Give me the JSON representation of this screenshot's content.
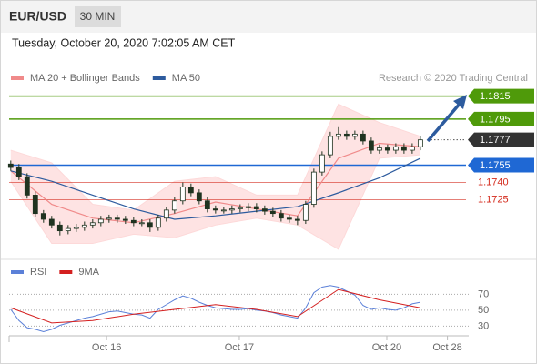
{
  "header": {
    "symbol": "EUR/USD",
    "interval": "30 MIN",
    "timestamp": "Tuesday, October 20, 2020 7:02:05 AM CET"
  },
  "chart_data": [
    {
      "type": "candlestick",
      "source": "Research © 2020 Trading Central",
      "open": [
        1.1756,
        1.1753,
        1.1745,
        1.1729,
        1.1713,
        1.1708,
        1.1703,
        1.1698,
        1.17,
        1.1701,
        1.1703,
        1.1705,
        1.1708,
        1.1709,
        1.1708,
        1.1707,
        1.1705,
        1.1705,
        1.1701,
        1.1709,
        1.1716,
        1.1724,
        1.1736,
        1.1731,
        1.1724,
        1.1717,
        1.1716,
        1.1716,
        1.1717,
        1.1718,
        1.1719,
        1.1717,
        1.1715,
        1.1713,
        1.1709,
        1.1708,
        1.1707,
        1.1721,
        1.1749,
        1.1764,
        1.178,
        1.1782,
        1.178,
        1.1782,
        1.1776,
        1.1768,
        1.177,
        1.1768,
        1.1771,
        1.1768,
        1.1771
      ],
      "high": [
        1.1759,
        1.1756,
        1.1748,
        1.1732,
        1.1716,
        1.1711,
        1.1706,
        1.1703,
        1.1704,
        1.1706,
        1.1708,
        1.1711,
        1.1712,
        1.1712,
        1.1711,
        1.171,
        1.1708,
        1.1708,
        1.1712,
        1.1719,
        1.1727,
        1.174,
        1.1739,
        1.1734,
        1.1727,
        1.172,
        1.1719,
        1.172,
        1.1721,
        1.1722,
        1.1722,
        1.172,
        1.1718,
        1.1716,
        1.1712,
        1.1711,
        1.1724,
        1.1752,
        1.1767,
        1.1784,
        1.1788,
        1.1785,
        1.1785,
        1.1785,
        1.1779,
        1.1773,
        1.1773,
        1.1774,
        1.1774,
        1.1774,
        1.178
      ],
      "low": [
        1.175,
        1.1742,
        1.1726,
        1.171,
        1.1705,
        1.17,
        1.1694,
        1.1695,
        1.1697,
        1.1698,
        1.17,
        1.1702,
        1.1705,
        1.1705,
        1.1704,
        1.1702,
        1.1702,
        1.1697,
        1.1698,
        1.1706,
        1.1713,
        1.1721,
        1.1728,
        1.1721,
        1.1714,
        1.1713,
        1.1713,
        1.1713,
        1.1714,
        1.1715,
        1.1714,
        1.1712,
        1.171,
        1.1706,
        1.1705,
        1.1703,
        1.1704,
        1.1718,
        1.1746,
        1.1761,
        1.1777,
        1.1777,
        1.1777,
        1.1773,
        1.1765,
        1.1765,
        1.1765,
        1.1765,
        1.1765,
        1.1765,
        1.1768
      ],
      "close": [
        1.1753,
        1.1745,
        1.1729,
        1.1713,
        1.1708,
        1.1703,
        1.1698,
        1.17,
        1.1701,
        1.1703,
        1.1705,
        1.1708,
        1.1709,
        1.1708,
        1.1707,
        1.1705,
        1.1705,
        1.1701,
        1.1709,
        1.1716,
        1.1724,
        1.1736,
        1.1731,
        1.1724,
        1.1717,
        1.1716,
        1.1716,
        1.1717,
        1.1718,
        1.1719,
        1.1717,
        1.1715,
        1.1713,
        1.1709,
        1.1708,
        1.1707,
        1.1721,
        1.1749,
        1.1764,
        1.178,
        1.1782,
        1.178,
        1.1782,
        1.1776,
        1.1768,
        1.177,
        1.1768,
        1.1771,
        1.1768,
        1.1771,
        1.1777
      ],
      "candle_color": "#1f3320",
      "series": [
        {
          "name": "MA 20 + Bollinger Bands",
          "color": "#f08a8a",
          "band_color": "#fdd9d9",
          "x": [
            0,
            5,
            10,
            15,
            20,
            25,
            30,
            35,
            40,
            45,
            50
          ],
          "values": [
            1.175,
            1.1721,
            1.1709,
            1.1705,
            1.1713,
            1.1723,
            1.1717,
            1.1711,
            1.1761,
            1.1774,
            1.1771
          ],
          "upper": [
            1.1768,
            1.1757,
            1.1721,
            1.1716,
            1.1741,
            1.1745,
            1.1729,
            1.1729,
            1.1808,
            1.1792,
            1.178
          ],
          "lower": [
            1.1741,
            1.1687,
            1.1687,
            1.1695,
            1.1692,
            1.1703,
            1.1709,
            1.1703,
            1.1682,
            1.1761,
            1.1764
          ]
        },
        {
          "name": "MA 50",
          "color": "#2d5b9e",
          "x": [
            0,
            5,
            10,
            15,
            20,
            25,
            30,
            35,
            40,
            45,
            50
          ],
          "values": [
            1.175,
            1.1741,
            1.1729,
            1.1717,
            1.1708,
            1.1711,
            1.1715,
            1.1719,
            1.1731,
            1.1744,
            1.1761
          ]
        }
      ],
      "levels": [
        {
          "value": 1.1815,
          "label": "1.1815",
          "color": "#4f9a0a",
          "kind": "box"
        },
        {
          "value": 1.1795,
          "label": "1.1795",
          "color": "#4f9a0a",
          "kind": "box"
        },
        {
          "value": 1.1777,
          "label": "1.1777",
          "color": "#333333",
          "kind": "last"
        },
        {
          "value": 1.1755,
          "label": "1.1755",
          "color": "#1f68d4",
          "kind": "box"
        },
        {
          "value": 1.174,
          "label": "1.1740",
          "color": "#d42a1c",
          "kind": "text"
        },
        {
          "value": 1.1725,
          "label": "1.1725",
          "color": "#d42a1c",
          "kind": "text"
        }
      ],
      "xlim": [
        -0.2,
        55.9
      ],
      "ylim": [
        1.1674,
        1.187
      ]
    },
    {
      "type": "line",
      "series": [
        {
          "name": "RSI",
          "color": "#5b80d8",
          "values": [
            51,
            37,
            28,
            26,
            23,
            26,
            31,
            34,
            37,
            40,
            42,
            45,
            48,
            49,
            47,
            45,
            44,
            40,
            51,
            57,
            63,
            68,
            65,
            60,
            56,
            53,
            52,
            51,
            51,
            52,
            50,
            49,
            47,
            44,
            42,
            40,
            53,
            72,
            79,
            81,
            79,
            74,
            69,
            56,
            51,
            53,
            51,
            50,
            53,
            58,
            60
          ]
        },
        {
          "name": "9MA",
          "color": "#d42020",
          "x": [
            0,
            5,
            10,
            15,
            20,
            25,
            30,
            35,
            40,
            45,
            50
          ],
          "values": [
            53,
            34,
            37,
            45,
            51,
            57,
            51,
            42,
            76,
            63,
            53
          ]
        }
      ],
      "xlim": [
        -0.2,
        55.9
      ],
      "ylim": [
        19,
        91
      ],
      "yticks": [
        30,
        50,
        70
      ],
      "xticks": [
        {
          "value": 11.7,
          "label": "Oct 16"
        },
        {
          "value": 27.9,
          "label": "Oct 17"
        },
        {
          "value": 45.9,
          "label": "Oct 20"
        },
        {
          "value": 53.3,
          "label": "Oct 28"
        }
      ]
    }
  ]
}
